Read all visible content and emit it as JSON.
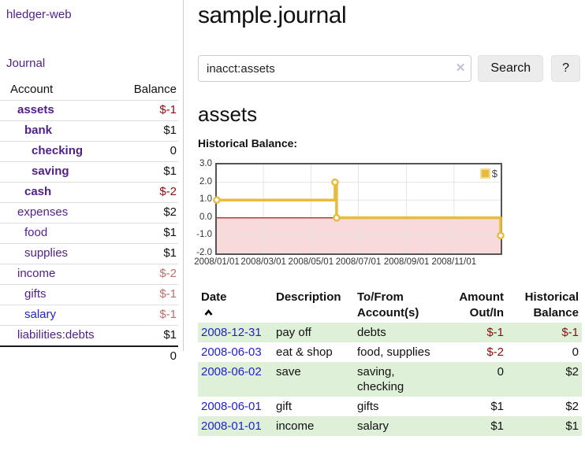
{
  "app": {
    "brand": "hledger-web"
  },
  "sidebar": {
    "nav": {
      "journal": "Journal"
    },
    "table": {
      "headers": {
        "account": "Account",
        "balance": "Balance"
      },
      "rows": [
        {
          "name": "assets",
          "balance": "$-1"
        },
        {
          "name": "bank",
          "balance": "$1"
        },
        {
          "name": "checking",
          "balance": "0"
        },
        {
          "name": "saving",
          "balance": "$1"
        },
        {
          "name": "cash",
          "balance": "$-2"
        },
        {
          "name": "expenses",
          "balance": "$2"
        },
        {
          "name": "food",
          "balance": "$1"
        },
        {
          "name": "supplies",
          "balance": "$1"
        },
        {
          "name": "income",
          "balance": "$-2"
        },
        {
          "name": "gifts",
          "balance": "$-1"
        },
        {
          "name": "salary",
          "balance": "$-1"
        },
        {
          "name": "liabilities:debts",
          "balance": "$1"
        }
      ],
      "total": "0"
    }
  },
  "header": {
    "title": "sample.journal"
  },
  "search": {
    "value": "inacct:assets",
    "clear_icon": "✕",
    "button_label": "Search",
    "help_label": "?"
  },
  "main": {
    "account_heading": "assets",
    "chart_title": "Historical Balance:"
  },
  "chart_data": {
    "type": "line",
    "title": "Historical Balance",
    "legend": "$",
    "legend_position": "top-right",
    "x_start": "2008-01-01",
    "x_end": "2008-12-31",
    "ylim": [
      -2,
      3
    ],
    "y_ticks": [
      "3.0",
      "2.0",
      "1.0",
      "0.0",
      "-1.0",
      "-2.0"
    ],
    "x_ticks": [
      "2008/01/01",
      "2008/03/01",
      "2008/05/01",
      "2008/07/01",
      "2008/09/01",
      "2008/11/01"
    ],
    "grid": true,
    "step": true,
    "series": [
      {
        "name": "$",
        "color": "#e8ba3d",
        "points": [
          [
            "2008-01-01",
            1
          ],
          [
            "2008-06-01",
            2
          ],
          [
            "2008-06-03",
            0
          ],
          [
            "2008-12-31",
            -1
          ]
        ]
      }
    ],
    "negative_region_color": "#f9dada",
    "zero_line_color": "#a40000",
    "grid_color": "#e4e4e4"
  },
  "register": {
    "headers": {
      "date": "Date",
      "description": "Description",
      "account1": "To/From",
      "account2": "Account(s)",
      "amount1": "Amount",
      "amount2": "Out/In",
      "balance1": "Historical",
      "balance2": "Balance"
    },
    "rows": [
      {
        "date": "2008-12-31",
        "description": "pay off",
        "account": "debts",
        "amount": "$-1",
        "balance": "$-1"
      },
      {
        "date": "2008-06-03",
        "description": "eat & shop",
        "account": "food, supplies",
        "amount": "$-2",
        "balance": "0"
      },
      {
        "date": "2008-06-02",
        "description": "save",
        "account": "saving, checking",
        "amount": "0",
        "balance": "$2"
      },
      {
        "date": "2008-06-01",
        "description": "gift",
        "account": "gifts",
        "amount": "$1",
        "balance": "$2"
      },
      {
        "date": "2008-01-01",
        "description": "income",
        "account": "salary",
        "amount": "$1",
        "balance": "$1"
      }
    ]
  },
  "colors": {
    "link_purple": "#511f8a",
    "link_blue": "#2222cc",
    "negative": "#8b0d0d",
    "negative_muted": "#bb6f6f",
    "row_stripe_green": "#dff0d8",
    "chart_line_gold": "#e8ba3d",
    "chart_negative_pink": "#f9dada",
    "chart_zero_red": "#a40000"
  }
}
